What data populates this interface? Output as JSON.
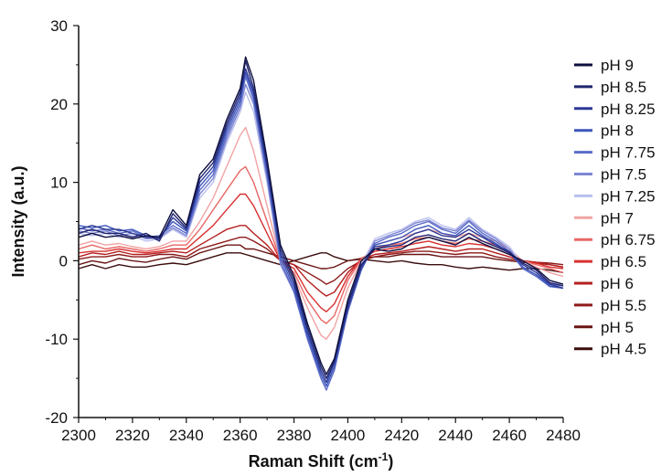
{
  "chart_data": {
    "type": "line",
    "title": "",
    "xlabel": "Raman Shift (cm",
    "xlabel_sup": "-1",
    "xlabel_suffix": ")",
    "ylabel": "Intensity (a.u.)",
    "xlim": [
      2300,
      2480
    ],
    "ylim": [
      -20,
      30
    ],
    "xticks": [
      2300,
      2320,
      2340,
      2360,
      2380,
      2400,
      2420,
      2440,
      2460,
      2480
    ],
    "yticks": [
      -20,
      -10,
      0,
      10,
      20,
      30
    ],
    "grid": false,
    "legend_position": "right",
    "x": [
      2300,
      2305,
      2310,
      2315,
      2320,
      2325,
      2330,
      2335,
      2340,
      2345,
      2350,
      2355,
      2360,
      2362,
      2365,
      2370,
      2375,
      2380,
      2385,
      2390,
      2392,
      2395,
      2400,
      2405,
      2410,
      2415,
      2420,
      2425,
      2430,
      2435,
      2440,
      2445,
      2450,
      2455,
      2460,
      2465,
      2470,
      2475,
      2480
    ],
    "series": [
      {
        "name": "pH 9",
        "color": "#0d0f3f",
        "values": [
          3,
          3.5,
          3,
          3.2,
          2.8,
          3.2,
          3,
          6.5,
          4.5,
          11,
          13,
          18,
          22,
          26,
          23,
          13,
          2,
          -2,
          -8,
          -13,
          -14.5,
          -12.5,
          -5,
          0,
          1.5,
          1.2,
          1.5,
          2.5,
          3,
          2.5,
          2,
          3,
          2.2,
          1.5,
          0.8,
          0,
          -1,
          -2.5,
          -3
        ]
      },
      {
        "name": "pH 8.5",
        "color": "#20246e",
        "values": [
          3.5,
          4,
          3.5,
          3.5,
          3,
          3.5,
          2.5,
          6,
          4.2,
          10.5,
          12.5,
          17.5,
          21.5,
          25.5,
          22,
          12.5,
          1.5,
          -2.5,
          -8.5,
          -13.5,
          -15,
          -12.8,
          -5.5,
          -0.5,
          1.5,
          1.8,
          2,
          3,
          3.3,
          2.8,
          2.5,
          3.5,
          2.5,
          1.8,
          1,
          -0.3,
          -1.2,
          -2.8,
          -3.2
        ]
      },
      {
        "name": "pH 8.25",
        "color": "#2c3996",
        "values": [
          4,
          4.5,
          4,
          4,
          3.5,
          3,
          2.8,
          5.5,
          4,
          10,
          12,
          17,
          21,
          24.5,
          21.5,
          12,
          1,
          -3,
          -9,
          -14,
          -15.5,
          -13,
          -6,
          -0.8,
          1.8,
          2,
          2.5,
          3.5,
          4,
          3.2,
          3,
          4,
          3,
          2,
          1.2,
          -0.5,
          -1.5,
          -3,
          -3.5
        ]
      },
      {
        "name": "pH 8",
        "color": "#3d56bb",
        "values": [
          4.5,
          4.2,
          4.5,
          3.8,
          4,
          3.2,
          3,
          5,
          3.8,
          9.5,
          11.5,
          16.5,
          20.5,
          24,
          21,
          11.5,
          0.5,
          -3.5,
          -9.5,
          -14.5,
          -16,
          -13.5,
          -6.2,
          -1,
          2,
          2.5,
          3,
          4,
          4.5,
          3.5,
          3.2,
          4.5,
          3.2,
          2.2,
          1,
          -0.8,
          -1.8,
          -3.2,
          -3.5
        ]
      },
      {
        "name": "pH 7.75",
        "color": "#5b6cc8",
        "values": [
          4.2,
          3.8,
          4,
          3.5,
          3.8,
          3,
          3.2,
          4.5,
          3.5,
          9,
          11,
          16,
          20,
          23.5,
          20.5,
          11,
          0,
          -4,
          -10,
          -15,
          -16.5,
          -14,
          -6.5,
          -1.2,
          2.2,
          3,
          3.5,
          4.5,
          5,
          4,
          3.5,
          5,
          3.5,
          2.5,
          1.2,
          -1,
          -2,
          -3.3,
          -3.5
        ]
      },
      {
        "name": "pH 7.5",
        "color": "#7e86d2",
        "values": [
          3.8,
          3.5,
          3.8,
          3.2,
          3.5,
          2.8,
          3,
          4.2,
          3.2,
          8.5,
          10.5,
          15.5,
          19.5,
          22.5,
          20,
          10.5,
          -0.5,
          -4,
          -10,
          -14.5,
          -16,
          -13.5,
          -6.5,
          -1,
          2.5,
          3.2,
          3.8,
          4.8,
          5.2,
          4.2,
          3.8,
          5.2,
          3.8,
          2.8,
          1.5,
          -0.8,
          -1.8,
          -3,
          -3.2
        ]
      },
      {
        "name": "pH 7.25",
        "color": "#b9bfee",
        "values": [
          3.5,
          3.2,
          3.5,
          3,
          3.2,
          2.5,
          2.8,
          4,
          3,
          8,
          10,
          15,
          19,
          21.5,
          19,
          10,
          -0.5,
          -3.5,
          -9.5,
          -14,
          -15.5,
          -13,
          -6,
          -0.5,
          2.8,
          3.5,
          4,
          5,
          5.5,
          4.5,
          4,
          5.5,
          4,
          3,
          1.8,
          -0.5,
          -1.5,
          -2.8,
          -3
        ]
      },
      {
        "name": "pH 7",
        "color": "#f2a3a3",
        "values": [
          2,
          2.5,
          2,
          2.2,
          1.8,
          1.5,
          1.8,
          2.5,
          2.5,
          5,
          8,
          12,
          16,
          17,
          14,
          7,
          0,
          -2,
          -6,
          -9.5,
          -10,
          -8.5,
          -3.5,
          0,
          2,
          2.5,
          3,
          3.5,
          4,
          3.5,
          3,
          3.5,
          3,
          2.5,
          1.5,
          0,
          -0.8,
          -1.5,
          -2
        ]
      },
      {
        "name": "pH 6.75",
        "color": "#e96666",
        "values": [
          1.5,
          2,
          1.5,
          1.8,
          1.5,
          1.2,
          1.5,
          2,
          2,
          4,
          6.5,
          9,
          11.5,
          12,
          10,
          5,
          0,
          -1.5,
          -5,
          -7.5,
          -8,
          -7,
          -2.5,
          0.2,
          1.5,
          2,
          2.2,
          2.8,
          3,
          2.5,
          2.2,
          2.8,
          2.5,
          2,
          1,
          0,
          -0.5,
          -1,
          -1.5
        ]
      },
      {
        "name": "pH 6.5",
        "color": "#d83030",
        "values": [
          1,
          1.2,
          1.2,
          1.5,
          1.2,
          1,
          1.2,
          1.5,
          1.5,
          3,
          4.5,
          6.5,
          8.5,
          8.5,
          7,
          3.5,
          0,
          -1,
          -4,
          -6,
          -6.5,
          -5.5,
          -2,
          0.3,
          1.2,
          1.5,
          1.8,
          2.2,
          2.5,
          2,
          1.8,
          2.2,
          2,
          1.5,
          0.8,
          0,
          -0.3,
          -0.8,
          -1
        ]
      },
      {
        "name": "pH 6",
        "color": "#b51f1f",
        "values": [
          0.5,
          1,
          0.8,
          1.2,
          0.8,
          0.8,
          1,
          1.2,
          1,
          2,
          3,
          4,
          4.5,
          4.5,
          3.5,
          2,
          0,
          -0.5,
          -2.5,
          -4,
          -4.5,
          -4,
          -1.5,
          0.2,
          0.8,
          1,
          1.2,
          1.5,
          1.8,
          1.5,
          1.2,
          1.5,
          1.5,
          1,
          0.5,
          0,
          -0.2,
          -0.5,
          -0.8
        ]
      },
      {
        "name": "pH 5.5",
        "color": "#8e1a1a",
        "values": [
          0.2,
          0.5,
          0.5,
          0.8,
          0.5,
          0.5,
          0.8,
          0.8,
          0.5,
          1.5,
          2,
          2.5,
          3,
          3,
          2.5,
          1.5,
          0,
          -0.5,
          -1.5,
          -2.5,
          -3,
          -2.5,
          -1,
          0,
          0.5,
          0.8,
          1,
          1.2,
          1.2,
          1,
          0.8,
          1,
          1,
          0.5,
          0.2,
          0,
          -0.2,
          -0.3,
          -0.5
        ]
      },
      {
        "name": "pH 5",
        "color": "#6b1515",
        "values": [
          -0.5,
          0,
          -0.3,
          0.3,
          0,
          -0.2,
          0.2,
          0.5,
          0.2,
          1,
          1.5,
          2,
          2,
          1.5,
          1.5,
          1,
          0.5,
          0,
          -0.5,
          -1,
          -1,
          -0.8,
          0,
          0.3,
          0.5,
          0.5,
          0.8,
          0.8,
          0.8,
          0.5,
          0.5,
          0.5,
          0.5,
          0.2,
          0,
          -0.2,
          -0.3,
          -0.5,
          -0.8
        ]
      },
      {
        "name": "pH 4.5",
        "color": "#3b0d0d",
        "values": [
          -1,
          -0.5,
          -1,
          -0.5,
          -0.8,
          -0.8,
          -0.5,
          -0.3,
          -0.5,
          0,
          0.5,
          1,
          1,
          0.8,
          0.5,
          0,
          -0.5,
          0,
          0.5,
          1,
          1,
          0.5,
          0,
          0.2,
          0,
          -0.2,
          0,
          -0.3,
          -0.5,
          -0.5,
          -0.8,
          -1,
          -0.8,
          -1,
          -1.2,
          -1,
          -1,
          -1.2,
          -1.5
        ]
      }
    ]
  }
}
